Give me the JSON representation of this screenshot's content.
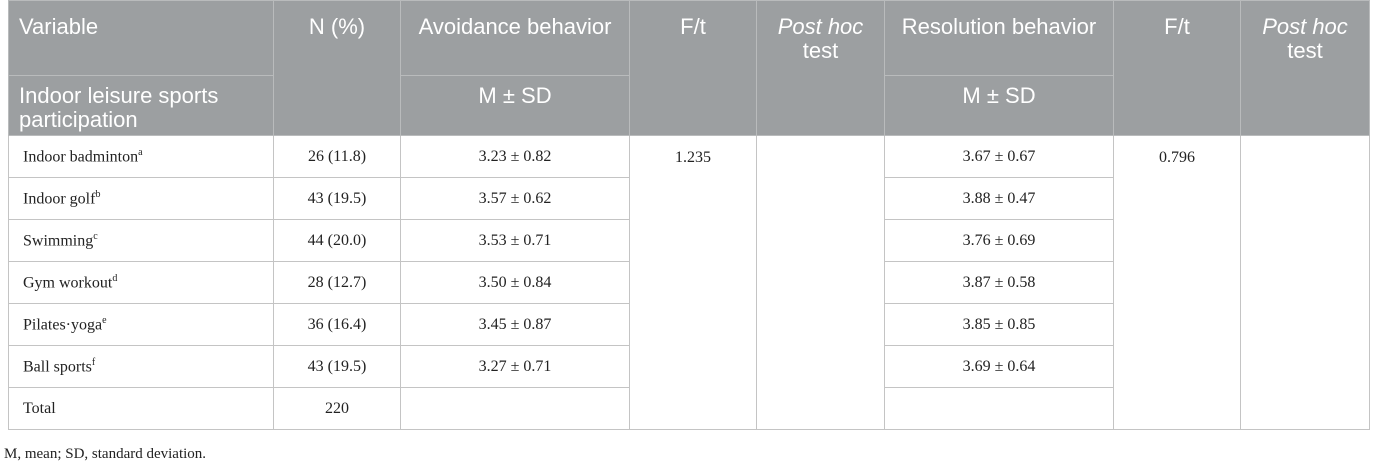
{
  "table": {
    "header": {
      "row1": [
        "Variable",
        "N (%)",
        "Avoidance behavior",
        "F/t",
        {
          "italic": "Post hoc",
          "text": "test"
        },
        "Resolution behavior",
        "F/t",
        {
          "italic": "Post hoc",
          "text": "test"
        }
      ],
      "row2": [
        "Indoor leisure sports participation",
        "M ± SD",
        "M ± SD"
      ]
    },
    "rows": [
      {
        "variable": "Indoor badminton",
        "sup": "a",
        "n": "26 (11.8)",
        "avoidance": "3.23 ± 0.82",
        "resolution": "3.67 ± 0.67"
      },
      {
        "variable": "Indoor golf",
        "sup": "b",
        "n": "43 (19.5)",
        "avoidance": "3.57 ± 0.62",
        "resolution": "3.88 ± 0.47"
      },
      {
        "variable": "Swimming",
        "sup": "c",
        "n": "44 (20.0)",
        "avoidance": "3.53 ± 0.71",
        "resolution": "3.76 ± 0.69"
      },
      {
        "variable": "Gym workout",
        "sup": "d",
        "n": "28 (12.7)",
        "avoidance": "3.50 ± 0.84",
        "resolution": "3.87 ± 0.58"
      },
      {
        "variable": "Pilates·yoga",
        "sup": "e",
        "n": "36 (16.4)",
        "avoidance": "3.45 ± 0.87",
        "resolution": "3.85 ± 0.85"
      },
      {
        "variable": "Ball sports",
        "sup": "f",
        "n": "43 (19.5)",
        "avoidance": "3.27 ± 0.71",
        "resolution": "3.69 ± 0.64"
      },
      {
        "variable": "Total",
        "n": "220"
      }
    ],
    "avoidance_ft": "1.235",
    "resolution_ft": "0.796",
    "footnote": "M, mean; SD, standard deviation."
  }
}
